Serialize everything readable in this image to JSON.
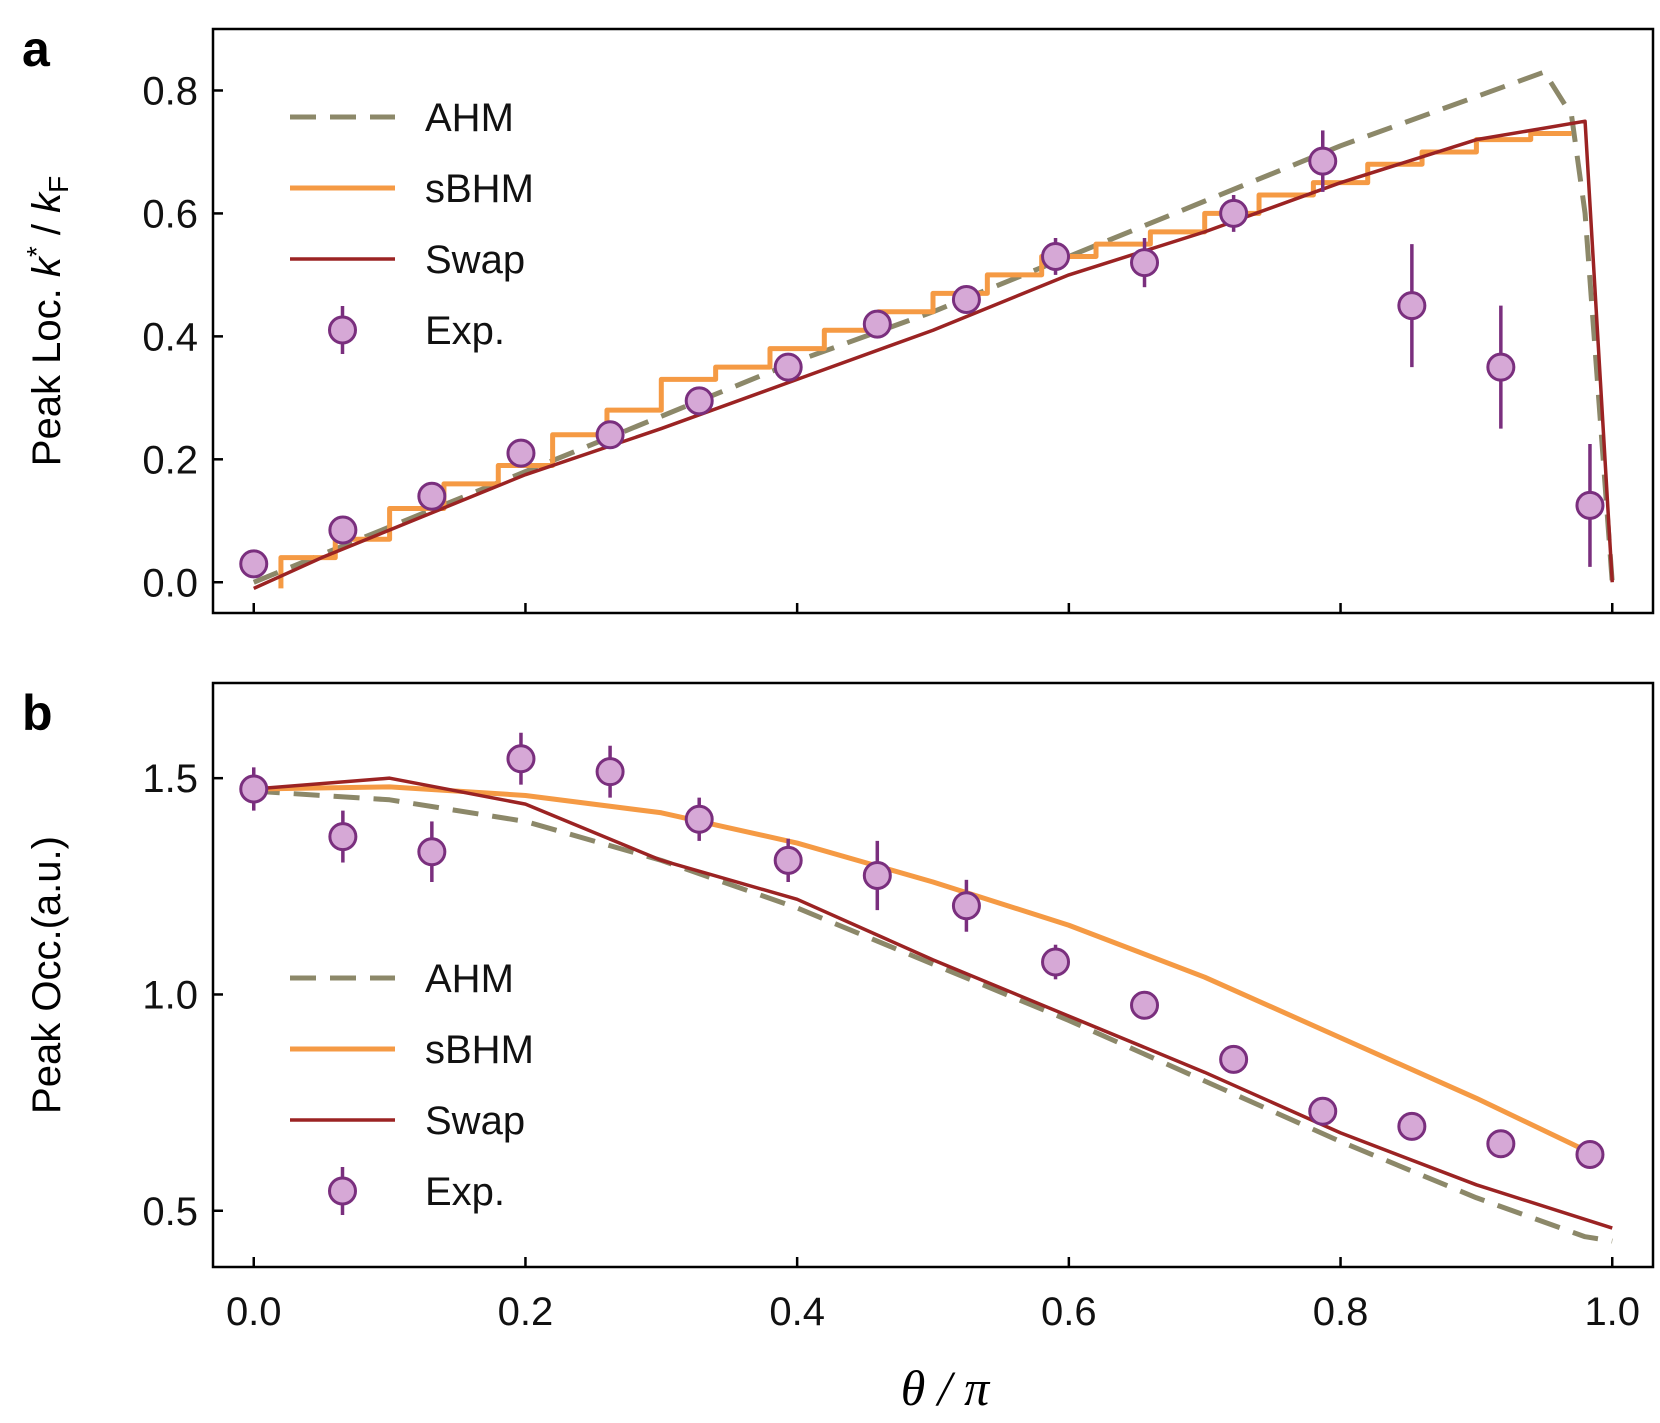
{
  "colors": {
    "AHM": "#8c8869",
    "sBHM": "#f59a44",
    "Swap": "#9b2323",
    "exp_fill": "#d6a8d6",
    "exp_edge": "#7a2f7e"
  },
  "xlabel": "θ / π",
  "chart_data": [
    {
      "type": "line",
      "panel_label": "a",
      "ylabel_main": "Peak Loc. ",
      "ylabel_k": "k",
      "ylabel_star": "*",
      "ylabel_slash": " / ",
      "ylabel_kF": "k",
      "ylabel_F": "F",
      "xlim": [
        -0.03,
        1.03
      ],
      "ylim": [
        -0.05,
        0.9
      ],
      "xticks": [
        0.0,
        0.2,
        0.4,
        0.6,
        0.8,
        1.0
      ],
      "xtick_labels": [
        "0.0",
        "0.2",
        "0.4",
        "0.6",
        "0.8",
        "1.0"
      ],
      "yticks": [
        0.0,
        0.2,
        0.4,
        0.6,
        0.8
      ],
      "ytick_labels": [
        "0.0",
        "0.2",
        "0.4",
        "0.6",
        "0.8"
      ],
      "legend": {
        "placement": "top-left",
        "items": [
          "AHM",
          "sBHM",
          "Swap",
          "Exp."
        ]
      },
      "series": [
        {
          "name": "AHM",
          "style": "dashed",
          "x": [
            0.0,
            0.1,
            0.2,
            0.3,
            0.4,
            0.5,
            0.6,
            0.7,
            0.8,
            0.9,
            0.95,
            0.97,
            0.98,
            1.0
          ],
          "y": [
            0.0,
            0.09,
            0.18,
            0.27,
            0.36,
            0.44,
            0.53,
            0.62,
            0.71,
            0.79,
            0.83,
            0.76,
            0.6,
            0.0
          ]
        },
        {
          "name": "sBHM",
          "style": "stepped",
          "x": [
            0.02,
            0.06,
            0.1,
            0.14,
            0.18,
            0.22,
            0.26,
            0.3,
            0.34,
            0.38,
            0.42,
            0.46,
            0.5,
            0.54,
            0.58,
            0.62,
            0.66,
            0.7,
            0.74,
            0.78,
            0.82,
            0.86,
            0.9,
            0.94,
            0.97
          ],
          "y": [
            -0.01,
            0.04,
            0.07,
            0.12,
            0.16,
            0.19,
            0.24,
            0.28,
            0.33,
            0.35,
            0.38,
            0.41,
            0.44,
            0.47,
            0.5,
            0.53,
            0.55,
            0.57,
            0.6,
            0.63,
            0.65,
            0.68,
            0.7,
            0.72,
            0.73
          ]
        },
        {
          "name": "Swap",
          "style": "solid",
          "x": [
            0.0,
            0.05,
            0.1,
            0.2,
            0.3,
            0.4,
            0.5,
            0.6,
            0.7,
            0.8,
            0.9,
            0.98,
            1.0
          ],
          "y": [
            -0.01,
            0.04,
            0.085,
            0.175,
            0.25,
            0.33,
            0.41,
            0.5,
            0.57,
            0.65,
            0.72,
            0.75,
            0.0
          ]
        },
        {
          "name": "Exp.",
          "style": "points",
          "x": [
            0.0,
            0.0656,
            0.1311,
            0.1967,
            0.2623,
            0.3279,
            0.3934,
            0.459,
            0.5246,
            0.5902,
            0.6557,
            0.7213,
            0.7869,
            0.8525,
            0.918,
            0.9836
          ],
          "y": [
            0.03,
            0.085,
            0.14,
            0.21,
            0.24,
            0.295,
            0.35,
            0.42,
            0.46,
            0.53,
            0.52,
            0.6,
            0.685,
            0.45,
            0.35,
            0.125
          ],
          "err": [
            0.015,
            0.015,
            0.015,
            0.015,
            0.015,
            0.015,
            0.015,
            0.015,
            0.015,
            0.03,
            0.04,
            0.03,
            0.05,
            0.1,
            0.1,
            0.1
          ]
        }
      ]
    },
    {
      "type": "line",
      "panel_label": "b",
      "ylabel": "Peak Occ.(a.u.)",
      "xlim": [
        -0.03,
        1.03
      ],
      "ylim": [
        0.37,
        1.72
      ],
      "xticks": [
        0.0,
        0.2,
        0.4,
        0.6,
        0.8,
        1.0
      ],
      "xtick_labels": [
        "0.0",
        "0.2",
        "0.4",
        "0.6",
        "0.8",
        "1.0"
      ],
      "yticks": [
        0.5,
        1.0,
        1.5
      ],
      "ytick_labels": [
        "0.5",
        "1.0",
        "1.5"
      ],
      "legend": {
        "placement": "bottom-left",
        "items": [
          "AHM",
          "sBHM",
          "Swap",
          "Exp."
        ]
      },
      "series": [
        {
          "name": "AHM",
          "style": "dashed",
          "x": [
            0.0,
            0.1,
            0.2,
            0.3,
            0.4,
            0.5,
            0.6,
            0.7,
            0.8,
            0.9,
            0.98,
            1.0
          ],
          "y": [
            1.47,
            1.45,
            1.4,
            1.31,
            1.2,
            1.07,
            0.94,
            0.8,
            0.66,
            0.53,
            0.44,
            0.43
          ]
        },
        {
          "name": "sBHM",
          "style": "solid",
          "x": [
            0.0,
            0.1,
            0.2,
            0.3,
            0.4,
            0.5,
            0.6,
            0.7,
            0.8,
            0.9,
            0.98
          ],
          "y": [
            1.475,
            1.48,
            1.46,
            1.42,
            1.35,
            1.26,
            1.16,
            1.04,
            0.9,
            0.76,
            0.64
          ]
        },
        {
          "name": "Swap",
          "style": "solid",
          "x": [
            0.0,
            0.1,
            0.2,
            0.3,
            0.4,
            0.5,
            0.6,
            0.7,
            0.8,
            0.9,
            1.0
          ],
          "y": [
            1.475,
            1.5,
            1.44,
            1.31,
            1.22,
            1.08,
            0.95,
            0.82,
            0.68,
            0.56,
            0.46
          ]
        },
        {
          "name": "Exp.",
          "style": "points",
          "x": [
            0.0,
            0.0656,
            0.1311,
            0.1967,
            0.2623,
            0.3279,
            0.3934,
            0.459,
            0.5246,
            0.5902,
            0.6557,
            0.7213,
            0.7869,
            0.8525,
            0.918,
            0.9836
          ],
          "y": [
            1.475,
            1.365,
            1.33,
            1.545,
            1.515,
            1.405,
            1.31,
            1.275,
            1.205,
            1.075,
            0.975,
            0.85,
            0.73,
            0.695,
            0.655,
            0.63
          ],
          "err": [
            0.05,
            0.06,
            0.07,
            0.06,
            0.06,
            0.05,
            0.05,
            0.08,
            0.06,
            0.04,
            0.02,
            0.02,
            0.02,
            0.02,
            0.02,
            0.02
          ]
        }
      ]
    }
  ]
}
